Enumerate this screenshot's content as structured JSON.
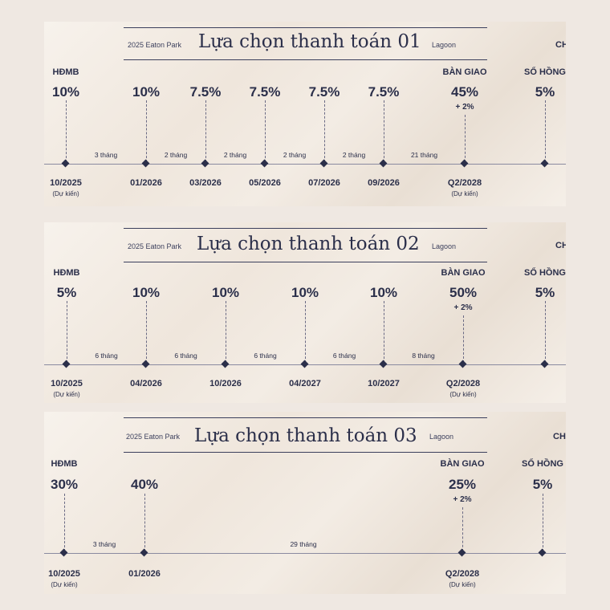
{
  "panels": [
    {
      "brand_left": "2025 Eaton Park",
      "title": "Lựa chọn thanh toán 01",
      "brand_right": "Lagoon",
      "clipped_text": "CH",
      "milestones": [
        {
          "label": "HĐMB",
          "percent": "10%",
          "date": "10/2025",
          "note": "(Dự kiến)"
        },
        {
          "percent": "10%",
          "date": "01/2026"
        },
        {
          "percent": "7.5%",
          "date": "03/2026"
        },
        {
          "percent": "7.5%",
          "date": "05/2026"
        },
        {
          "percent": "7.5%",
          "date": "07/2026"
        },
        {
          "percent": "7.5%",
          "date": "09/2026"
        },
        {
          "label": "BÀN GIAO",
          "percent": "45%",
          "extra": "+ 2%",
          "date": "Q2/2028",
          "note": "(Dự kiến)"
        },
        {
          "label": "SỔ HỒNG",
          "percent": "5%"
        }
      ],
      "intervals": [
        "3 tháng",
        "2 tháng",
        "2 tháng",
        "2 tháng",
        "2 tháng",
        "21 tháng"
      ]
    },
    {
      "brand_left": "2025 Eaton Park",
      "title": "Lựa chọn thanh toán 02",
      "brand_right": "Lagoon",
      "clipped_text": "CH",
      "milestones": [
        {
          "label": "HĐMB",
          "percent": "5%",
          "date": "10/2025",
          "note": "(Dự kiến)"
        },
        {
          "percent": "10%",
          "date": "04/2026"
        },
        {
          "percent": "10%",
          "date": "10/2026"
        },
        {
          "percent": "10%",
          "date": "04/2027"
        },
        {
          "percent": "10%",
          "date": "10/2027"
        },
        {
          "label": "BÀN GIAO",
          "percent": "50%",
          "extra": "+ 2%",
          "date": "Q2/2028",
          "note": "(Dự kiến)"
        },
        {
          "label": "SỔ HỒNG",
          "percent": "5%"
        }
      ],
      "intervals": [
        "6 tháng",
        "6 tháng",
        "6 tháng",
        "6 tháng",
        "8 tháng"
      ]
    },
    {
      "brand_left": "2025 Eaton Park",
      "title": "Lựa chọn thanh toán 03",
      "brand_right": "Lagoon",
      "clipped_text": "CHI",
      "milestones": [
        {
          "label": "HĐMB",
          "percent": "30%",
          "date": "10/2025",
          "note": "(Dự kiến)"
        },
        {
          "percent": "40%",
          "date": "01/2026"
        },
        {
          "label": "BÀN GIAO",
          "percent": "25%",
          "extra": "+ 2%",
          "date": "Q2/2028",
          "note": "(Dự kiến)"
        },
        {
          "label": "SỔ HỒNG",
          "percent": "5%"
        }
      ],
      "intervals": [
        "3 tháng",
        "29 tháng"
      ]
    }
  ]
}
